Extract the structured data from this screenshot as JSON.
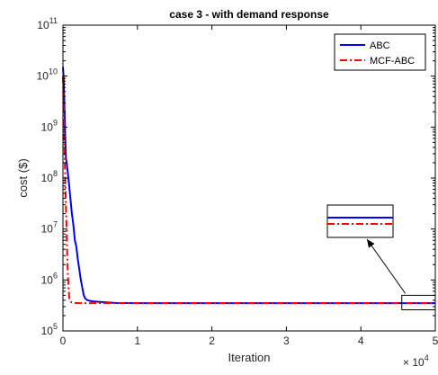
{
  "chart_data": {
    "type": "line",
    "title": "case 3 - with demand response",
    "xlabel": "Iteration",
    "ylabel": "cost ($)",
    "x_multiplier": "× 10^4",
    "xlim": [
      0,
      50000
    ],
    "ylim": [
      100000,
      100000000000
    ],
    "yscale": "log",
    "grid": false,
    "legend_position": "top-right",
    "x_ticks": [
      {
        "value": 0,
        "label": "0"
      },
      {
        "value": 10000,
        "label": "1"
      },
      {
        "value": 20000,
        "label": "2"
      },
      {
        "value": 30000,
        "label": "3"
      },
      {
        "value": 40000,
        "label": "4"
      },
      {
        "value": 50000,
        "label": "5"
      }
    ],
    "y_ticks": [
      {
        "value": 100000,
        "base": "10",
        "exp": "5"
      },
      {
        "value": 1000000,
        "base": "10",
        "exp": "6"
      },
      {
        "value": 10000000,
        "base": "10",
        "exp": "7"
      },
      {
        "value": 100000000,
        "base": "10",
        "exp": "8"
      },
      {
        "value": 1000000000,
        "base": "10",
        "exp": "9"
      },
      {
        "value": 10000000000,
        "base": "10",
        "exp": "10"
      },
      {
        "value": 100000000000,
        "base": "10",
        "exp": "11"
      }
    ],
    "series": [
      {
        "name": "ABC",
        "color": "#0000ff",
        "style": "solid",
        "x": [
          0,
          100,
          200,
          300,
          400,
          600,
          800,
          1000,
          1200,
          1400,
          1600,
          1800,
          2000,
          2200,
          2400,
          2600,
          2800,
          3000,
          3300,
          3600,
          4000,
          5000,
          7000,
          10000,
          20000,
          30000,
          40000,
          50000
        ],
        "y": [
          15000000000,
          9000000000,
          2500000000,
          700000000,
          250000000,
          150000000,
          80000000,
          40000000,
          20000000,
          12000000,
          6000000,
          4500000,
          2500000,
          1600000,
          1000000,
          700000,
          500000,
          430000,
          400000,
          390000,
          380000,
          370000,
          355000,
          350000,
          350000,
          350000,
          350000,
          350000
        ]
      },
      {
        "name": "MCF-ABC",
        "color": "#ff0000",
        "style": "dashdot",
        "x": [
          0,
          80,
          150,
          250,
          350,
          450,
          550,
          650,
          750,
          850,
          1000,
          1200,
          1500,
          2000,
          3000,
          5000,
          7000,
          10000,
          20000,
          30000,
          40000,
          50000
        ],
        "y": [
          10000000000,
          3000000000,
          1000000000,
          200000000,
          50000000,
          15000000,
          4000000,
          1500000,
          700000,
          450000,
          380000,
          360000,
          355000,
          350000,
          350000,
          350000,
          350000,
          350000,
          350000,
          350000,
          350000,
          350000
        ]
      }
    ],
    "zoom_inset": {
      "source_x_range": [
        45500,
        50000
      ],
      "source_y_range": [
        260000,
        500000
      ]
    }
  }
}
